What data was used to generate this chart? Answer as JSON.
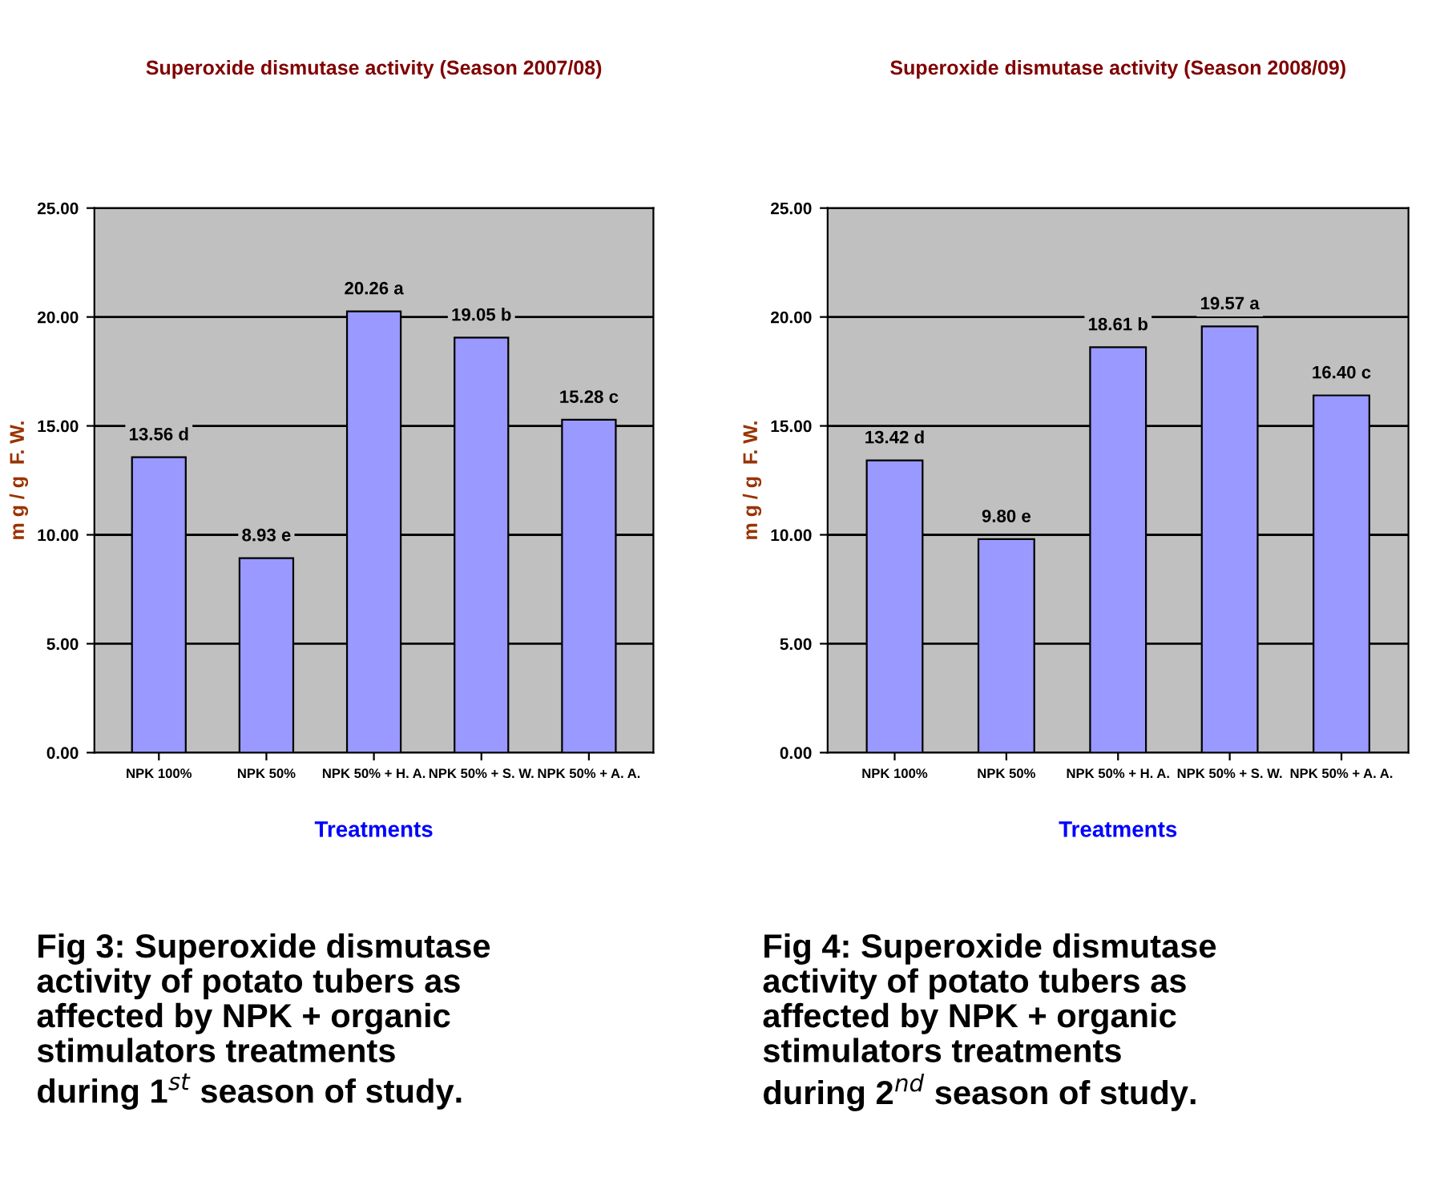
{
  "chart_data": [
    {
      "type": "bar",
      "title": "Superoxide dismutase activity (Season 2007/08)",
      "xlabel": "Treatments",
      "ylabel": "m g / g  F. W.",
      "categories": [
        "NPK 100%",
        "NPK 50%",
        "NPK 50% + H. A.",
        "NPK 50% + S. W.",
        "NPK 50% + A. A."
      ],
      "values": [
        13.56,
        8.93,
        20.26,
        19.05,
        15.28
      ],
      "color": "#9999ff",
      "value_labels": [
        "13.56 d",
        "8.93 e",
        "20.26 a",
        "19.05 b",
        "15.28 c"
      ],
      "ylim": [
        0,
        25
      ],
      "yticks": [
        {
          "value": 0,
          "label": "0.00"
        },
        {
          "value": 5,
          "label": "5.00"
        },
        {
          "value": 10,
          "label": "10.00"
        },
        {
          "value": 15,
          "label": "15.00"
        },
        {
          "value": 20,
          "label": "20.00"
        },
        {
          "value": 25,
          "label": "25.00"
        }
      ],
      "grid": "y",
      "legend": false,
      "annotations": [
        "Fig 3: Superoxide dismutase\nactivity of potato tubers as\naffected by NPK + organic\nstimulators treatments\nduring 1$^{st}$ season of study."
      ]
    },
    {
      "type": "bar",
      "title": "Superoxide dismutase activity (Season 2008/09)",
      "xlabel": "Treatments",
      "ylabel": "m g / g  F. W.",
      "categories": [
        "NPK 100%",
        "NPK 50%",
        "NPK 50% + H. A.",
        "NPK 50% + S. W.",
        "NPK 50% + A. A."
      ],
      "values": [
        13.42,
        9.8,
        18.61,
        19.57,
        16.4
      ],
      "color": "#9999ff",
      "value_labels": [
        "13.42 d",
        "9.80 e",
        "18.61 b",
        "19.57 a",
        "16.40 c"
      ],
      "ylim": [
        0,
        25
      ],
      "yticks": [
        {
          "value": 0,
          "label": "0.00"
        },
        {
          "value": 5,
          "label": "5.00"
        },
        {
          "value": 10,
          "label": "10.00"
        },
        {
          "value": 15,
          "label": "15.00"
        },
        {
          "value": 20,
          "label": "20.00"
        },
        {
          "value": 25,
          "label": "25.00"
        }
      ],
      "grid": "y",
      "legend": false,
      "annotations": [
        "Fig 4: Superoxide dismutase\nactivity of potato tubers as\naffected by NPK + organic\nstimulators treatments\nduring 2$^{nd}$ season of study."
      ]
    }
  ]
}
